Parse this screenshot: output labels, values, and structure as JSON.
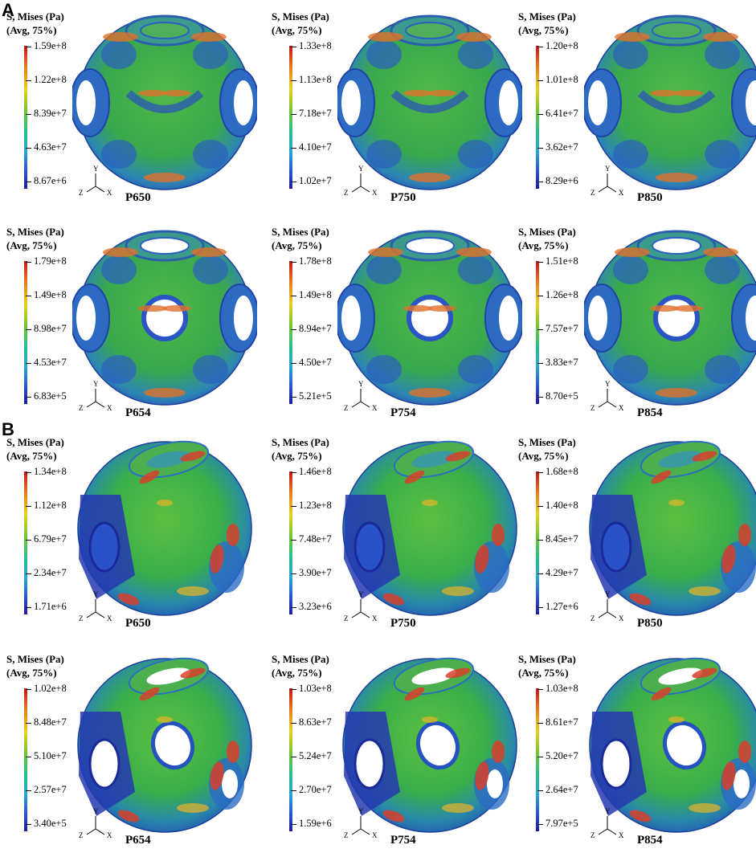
{
  "sections": [
    {
      "id": "A",
      "label": "A",
      "panels": [
        {
          "legend_title": "S, Mises (Pa)",
          "legend_subtitle": "(Avg, 75%)",
          "ticks": [
            "1.59e+8",
            "1.22e+8",
            "8.39e+7",
            "4.63e+7",
            "8.67e+6"
          ],
          "label": "P650",
          "variant": "solid"
        },
        {
          "legend_title": "S, Mises (Pa)",
          "legend_subtitle": "(Avg, 75%)",
          "ticks": [
            "1.33e+8",
            "1.13e+8",
            "7.18e+7",
            "4.10e+7",
            "1.02e+7"
          ],
          "label": "P750",
          "variant": "solid"
        },
        {
          "legend_title": "S, Mises (Pa)",
          "legend_subtitle": "(Avg, 75%)",
          "ticks": [
            "1.20e+8",
            "1.01e+8",
            "6.41e+7",
            "3.62e+7",
            "8.29e+6"
          ],
          "label": "P850",
          "variant": "solid"
        },
        {
          "legend_title": "S, Mises (Pa)",
          "legend_subtitle": "(Avg, 75%)",
          "ticks": [
            "1.79e+8",
            "1.49e+8",
            "8.98e+7",
            "4.53e+7",
            "6.83e+5"
          ],
          "label": "P654",
          "variant": "hollow"
        },
        {
          "legend_title": "S, Mises (Pa)",
          "legend_subtitle": "(Avg, 75%)",
          "ticks": [
            "1.78e+8",
            "1.49e+8",
            "8.94e+7",
            "4.50e+7",
            "5.21e+5"
          ],
          "label": "P754",
          "variant": "hollow"
        },
        {
          "legend_title": "S, Mises (Pa)",
          "legend_subtitle": "(Avg, 75%)",
          "ticks": [
            "1.51e+8",
            "1.26e+8",
            "7.57e+7",
            "3.83e+7",
            "8.70e+5"
          ],
          "label": "P854",
          "variant": "hollow"
        }
      ]
    },
    {
      "id": "B",
      "label": "B",
      "panels": [
        {
          "legend_title": "S, Mises (Pa)",
          "legend_subtitle": "(Avg, 75%)",
          "ticks": [
            "1.34e+8",
            "1.12e+8",
            "6.79e+7",
            "2.34e+7",
            "1.71e+6"
          ],
          "label": "P650",
          "variant": "tilted"
        },
        {
          "legend_title": "S, Mises (Pa)",
          "legend_subtitle": "(Avg, 75%)",
          "ticks": [
            "1.46e+8",
            "1.23e+8",
            "7.48e+7",
            "3.90e+7",
            "3.23e+6"
          ],
          "label": "P750",
          "variant": "tilted"
        },
        {
          "legend_title": "S, Mises (Pa)",
          "legend_subtitle": "(Avg, 75%)",
          "ticks": [
            "1.68e+8",
            "1.40e+8",
            "8.45e+7",
            "4.29e+7",
            "1.27e+6"
          ],
          "label": "P850",
          "variant": "tilted"
        },
        {
          "legend_title": "S, Mises (Pa)",
          "legend_subtitle": "(Avg, 75%)",
          "ticks": [
            "1.02e+8",
            "8.48e+7",
            "5.10e+7",
            "2.57e+7",
            "3.40e+5"
          ],
          "label": "P654",
          "variant": "tilted-hollow"
        },
        {
          "legend_title": "S, Mises (Pa)",
          "legend_subtitle": "(Avg, 75%)",
          "ticks": [
            "1.03e+8",
            "8.63e+7",
            "5.24e+7",
            "2.70e+7",
            "1.59e+6"
          ],
          "label": "P754",
          "variant": "tilted-hollow"
        },
        {
          "legend_title": "S, Mises (Pa)",
          "legend_subtitle": "(Avg, 75%)",
          "ticks": [
            "1.03e+8",
            "8.61e+7",
            "5.20e+7",
            "2.64e+7",
            "7.97e+5"
          ],
          "label": "P854",
          "variant": "tilted-hollow"
        }
      ]
    }
  ],
  "axes": {
    "x": "X",
    "y": "Y",
    "z": "Z"
  },
  "colors": {
    "max": "#c41515",
    "high": "#e8761c",
    "mid_high": "#e9d11e",
    "mid": "#6ec630",
    "mid_low": "#27a6d8",
    "low": "#1d1aa5"
  }
}
